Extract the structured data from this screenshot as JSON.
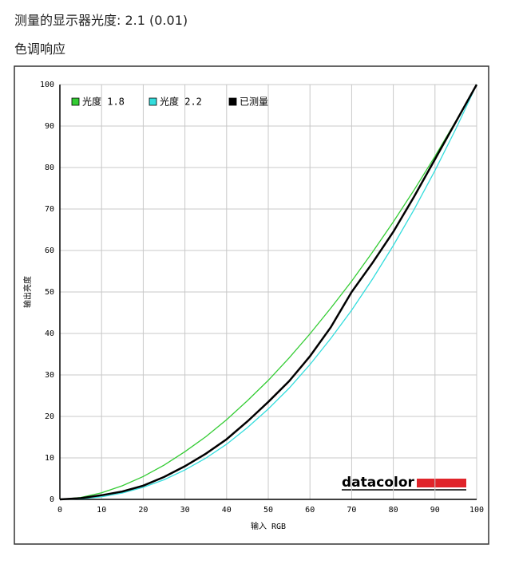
{
  "header": {
    "text": "测量的显示器光度:  2.1 (0.01)",
    "section": "色调响应"
  },
  "chart_data": {
    "type": "line",
    "xlabel": "输入 RGB",
    "ylabel": "输出亮度",
    "watermark": "datacolor",
    "x": [
      0,
      5,
      10,
      15,
      20,
      25,
      30,
      35,
      40,
      45,
      50,
      55,
      60,
      65,
      70,
      75,
      80,
      85,
      90,
      95,
      100
    ],
    "series": [
      {
        "name": "光度 1.8",
        "color": "#33cc33",
        "values": [
          0,
          0.455,
          1.58,
          3.29,
          5.52,
          8.25,
          11.5,
          15.1,
          19.2,
          23.8,
          28.7,
          34.1,
          39.9,
          46.1,
          52.6,
          59.6,
          66.9,
          74.6,
          82.7,
          91.2,
          100
        ]
      },
      {
        "name": "光度 2.2",
        "color": "#33dddd",
        "values": [
          0,
          0.14,
          0.63,
          1.54,
          2.9,
          4.74,
          7.1,
          9.93,
          13.3,
          17.3,
          21.8,
          26.8,
          32.5,
          38.8,
          45.6,
          53.1,
          61.2,
          69.9,
          79.3,
          89.3,
          100
        ]
      },
      {
        "name": "已测量",
        "color": "#000000",
        "values": [
          0,
          0.3,
          1,
          1.9,
          3.3,
          5.4,
          8,
          11,
          14.5,
          18.8,
          23.5,
          28.5,
          34.5,
          41.5,
          50,
          57,
          64.5,
          73,
          82,
          91,
          100
        ]
      }
    ],
    "xlim": [
      0,
      100
    ],
    "ylim": [
      0,
      100
    ],
    "xticks": [
      0,
      10,
      20,
      30,
      40,
      50,
      60,
      70,
      80,
      90,
      100
    ],
    "yticks": [
      0,
      10,
      20,
      30,
      40,
      50,
      60,
      70,
      80,
      90,
      100
    ],
    "grid": true,
    "legend": "top-left"
  }
}
